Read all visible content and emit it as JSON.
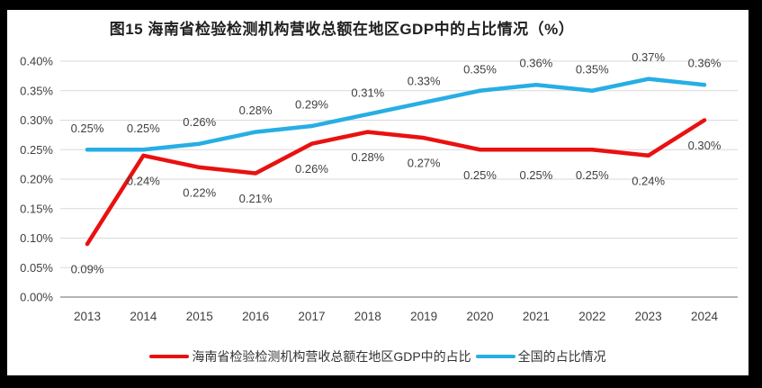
{
  "chart_data": {
    "type": "line",
    "title": "图15 海南省检验检测机构营收总额在地区GDP中的占比情况（%）",
    "categories": [
      "2013",
      "2014",
      "2015",
      "2016",
      "2017",
      "2018",
      "2019",
      "2020",
      "2021",
      "2022",
      "2023",
      "2024"
    ],
    "series": [
      {
        "name": "海南省检验检测机构营收总额在地区GDP中的占比",
        "color": "#e91110",
        "values": [
          0.09,
          0.24,
          0.22,
          0.21,
          0.26,
          0.28,
          0.27,
          0.25,
          0.25,
          0.25,
          0.24,
          0.3
        ],
        "labels": [
          "0.09%",
          "0.24%",
          "0.22%",
          "0.21%",
          "0.26%",
          "0.28%",
          "0.27%",
          "0.25%",
          "0.25%",
          "0.25%",
          "0.24%",
          "0.30%"
        ],
        "label_position": "below"
      },
      {
        "name": "全国的占比情况",
        "color": "#27aee4",
        "values": [
          0.25,
          0.25,
          0.26,
          0.28,
          0.29,
          0.31,
          0.33,
          0.35,
          0.36,
          0.35,
          0.37,
          0.36
        ],
        "labels": [
          "0.25%",
          "0.25%",
          "0.26%",
          "0.28%",
          "0.29%",
          "0.31%",
          "0.33%",
          "0.35%",
          "0.36%",
          "0.35%",
          "0.37%",
          "0.36%"
        ],
        "label_position": "above"
      }
    ],
    "y_axis": {
      "min": 0,
      "max": 0.4,
      "step": 0.05,
      "tick_labels": [
        "0.00%",
        "0.05%",
        "0.10%",
        "0.15%",
        "0.20%",
        "0.25%",
        "0.30%",
        "0.35%",
        "0.40%"
      ]
    },
    "x_axis": {
      "label": ""
    },
    "grid": true,
    "legend_position": "bottom",
    "colors": {
      "grid": "#d9d9d9",
      "axis": "#9b9b9b",
      "text": "#404040",
      "title": "#1f1f1f",
      "background": "#ffffff",
      "frame": "#000000"
    }
  }
}
